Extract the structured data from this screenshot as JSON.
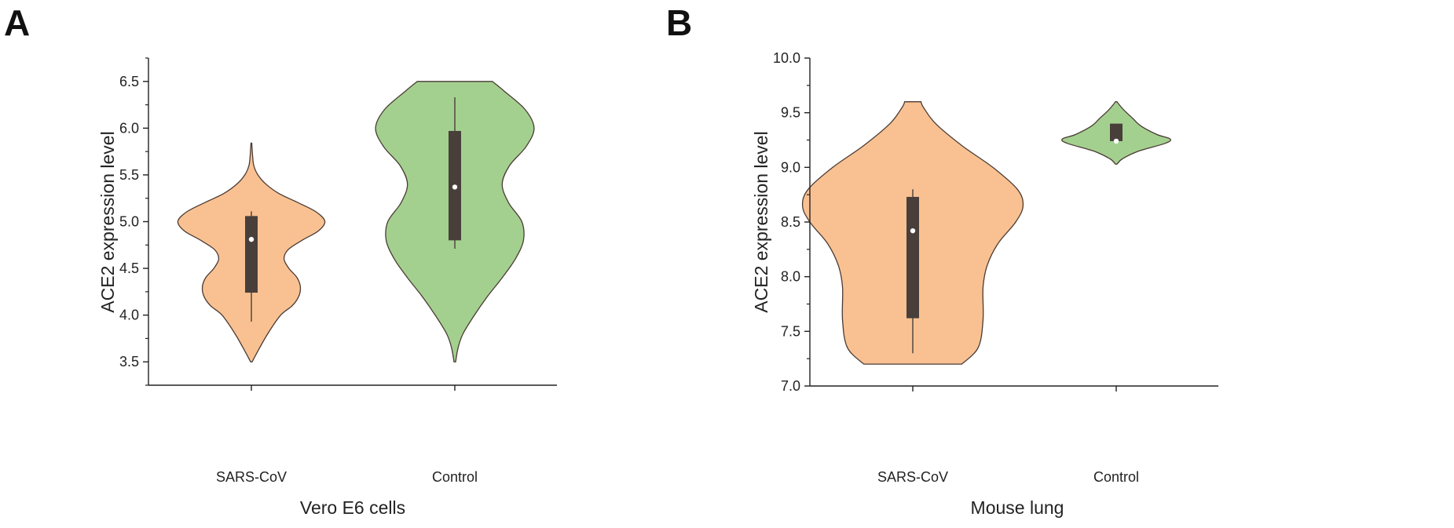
{
  "panels": [
    {
      "letter": "A",
      "ylabel": "ACE2 expression level",
      "xlabel": "Vero E6 cells",
      "yticks": [
        "3.5",
        "4.0",
        "4.5",
        "5.0",
        "5.5",
        "6.0",
        "6.5"
      ]
    },
    {
      "letter": "B",
      "ylabel": "ACE2 expression level",
      "xlabel": "Mouse lung",
      "yticks": [
        "7.0",
        "7.5",
        "8.0",
        "8.5",
        "9.0",
        "9.5",
        "10.0"
      ]
    }
  ],
  "colors": {
    "sars_fill": "#f9c191",
    "control_fill": "#a4d08f",
    "violin_edge": "#4a3b35",
    "box_fill": "#483f3b",
    "median_dot": "#ffffff",
    "axis": "#222222"
  },
  "chart_data": [
    {
      "type": "violin",
      "title": "",
      "xlabel": "Vero E6 cells",
      "ylabel": "ACE2 expression level",
      "ylim": [
        3.25,
        6.75
      ],
      "minor_ticks": true,
      "grid": false,
      "categories": [
        "SARS-CoV",
        "Control"
      ],
      "series": [
        {
          "color": "#f9c191",
          "range": [
            3.5,
            5.84
          ],
          "median": 4.81,
          "q1": 4.24,
          "q3": 5.06,
          "whisker_low": 3.93,
          "whisker_high": 5.11,
          "density_profile": [
            [
              3.5,
              0.01
            ],
            [
              3.6,
              0.07
            ],
            [
              3.8,
              0.2
            ],
            [
              4.0,
              0.36
            ],
            [
              4.1,
              0.5
            ],
            [
              4.2,
              0.58
            ],
            [
              4.3,
              0.6
            ],
            [
              4.4,
              0.56
            ],
            [
              4.5,
              0.46
            ],
            [
              4.6,
              0.4
            ],
            [
              4.7,
              0.45
            ],
            [
              4.8,
              0.62
            ],
            [
              4.9,
              0.82
            ],
            [
              5.0,
              0.9
            ],
            [
              5.1,
              0.8
            ],
            [
              5.2,
              0.58
            ],
            [
              5.3,
              0.34
            ],
            [
              5.4,
              0.18
            ],
            [
              5.5,
              0.08
            ],
            [
              5.6,
              0.03
            ],
            [
              5.7,
              0.015
            ],
            [
              5.84,
              0.005
            ]
          ]
        },
        {
          "color": "#a4d08f",
          "range": [
            3.5,
            6.5
          ],
          "median": 5.37,
          "q1": 4.8,
          "q3": 5.97,
          "whisker_low": 4.71,
          "whisker_high": 6.33,
          "density_profile": [
            [
              3.5,
              0.01
            ],
            [
              3.65,
              0.04
            ],
            [
              3.8,
              0.1
            ],
            [
              4.0,
              0.24
            ],
            [
              4.2,
              0.4
            ],
            [
              4.4,
              0.58
            ],
            [
              4.6,
              0.74
            ],
            [
              4.8,
              0.84
            ],
            [
              5.0,
              0.82
            ],
            [
              5.2,
              0.66
            ],
            [
              5.4,
              0.58
            ],
            [
              5.6,
              0.67
            ],
            [
              5.8,
              0.87
            ],
            [
              6.0,
              0.97
            ],
            [
              6.2,
              0.86
            ],
            [
              6.4,
              0.6
            ],
            [
              6.5,
              0.46
            ]
          ]
        }
      ]
    },
    {
      "type": "violin",
      "title": "",
      "xlabel": "Mouse lung",
      "ylabel": "ACE2 expression level",
      "ylim": [
        7.0,
        10.0
      ],
      "minor_ticks": true,
      "grid": false,
      "categories": [
        "SARS-CoV",
        "Control"
      ],
      "series": [
        {
          "color": "#f9c191",
          "range": [
            7.2,
            9.6
          ],
          "median": 8.42,
          "q1": 7.62,
          "q3": 8.73,
          "whisker_low": 7.3,
          "whisker_high": 8.8,
          "density_profile": [
            [
              7.2,
              0.6
            ],
            [
              7.35,
              0.8
            ],
            [
              7.6,
              0.86
            ],
            [
              7.9,
              0.86
            ],
            [
              8.1,
              0.91
            ],
            [
              8.3,
              1.04
            ],
            [
              8.5,
              1.26
            ],
            [
              8.65,
              1.35
            ],
            [
              8.8,
              1.28
            ],
            [
              9.0,
              0.98
            ],
            [
              9.2,
              0.6
            ],
            [
              9.4,
              0.28
            ],
            [
              9.55,
              0.13
            ],
            [
              9.6,
              0.1
            ]
          ]
        },
        {
          "color": "#a4d08f",
          "range": [
            9.03,
            9.6
          ],
          "median": 9.24,
          "q1": 9.24,
          "q3": 9.4,
          "whisker_low": 9.24,
          "whisker_high": 9.4,
          "density_profile": [
            [
              9.03,
              0.01
            ],
            [
              9.08,
              0.08
            ],
            [
              9.15,
              0.28
            ],
            [
              9.22,
              0.6
            ],
            [
              9.26,
              0.66
            ],
            [
              9.3,
              0.5
            ],
            [
              9.38,
              0.3
            ],
            [
              9.45,
              0.2
            ],
            [
              9.52,
              0.1
            ],
            [
              9.57,
              0.04
            ],
            [
              9.6,
              0.01
            ]
          ]
        }
      ]
    }
  ]
}
